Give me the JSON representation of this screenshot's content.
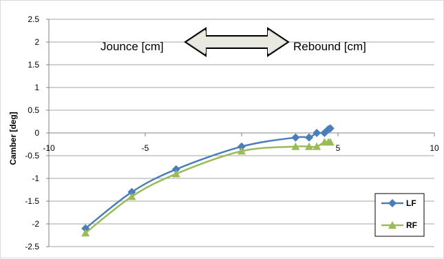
{
  "chart_data": {
    "type": "line",
    "title": "",
    "xlabel": "",
    "ylabel": "Camber [deg]",
    "xlim": [
      -10,
      10
    ],
    "ylim": [
      -2.5,
      2.5
    ],
    "x_ticks": [
      -10,
      -5,
      0,
      5,
      10
    ],
    "y_ticks": [
      2.5,
      2,
      1.5,
      1,
      0.5,
      0,
      -0.5,
      -1,
      -1.5,
      -2,
      -2.5
    ],
    "grid": "horizontal",
    "legend_position": "bottom-right",
    "annotations": {
      "left": "Jounce [cm]",
      "right": "Rebound [cm]"
    },
    "series": [
      {
        "name": "LF",
        "color": "#4a7ebb",
        "marker": "diamond",
        "x": [
          -8.1,
          -5.7,
          -3.4,
          0,
          2.8,
          3.5,
          3.9,
          4.3,
          4.5,
          4.6
        ],
        "y": [
          -2.1,
          -1.3,
          -0.8,
          -0.3,
          -0.1,
          -0.1,
          0.0,
          0.0,
          0.08,
          0.1
        ]
      },
      {
        "name": "RF",
        "color": "#9bbb59",
        "marker": "triangle",
        "x": [
          -8.1,
          -5.7,
          -3.4,
          0,
          2.8,
          3.5,
          3.9,
          4.3,
          4.5,
          4.6
        ],
        "y": [
          -2.2,
          -1.4,
          -0.9,
          -0.4,
          -0.3,
          -0.3,
          -0.3,
          -0.2,
          -0.2,
          -0.2
        ]
      }
    ]
  }
}
